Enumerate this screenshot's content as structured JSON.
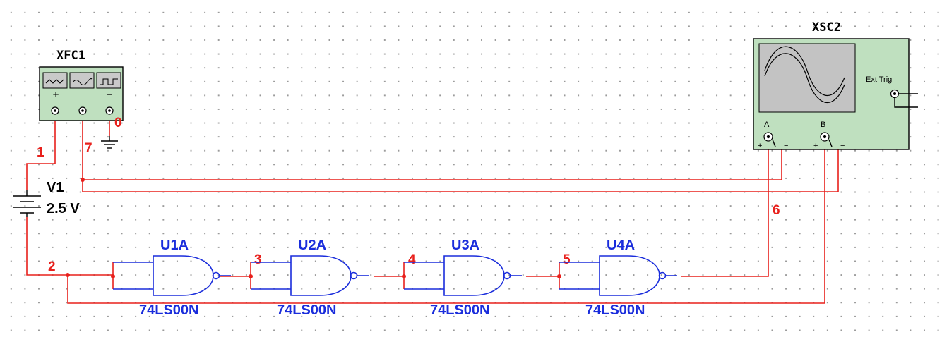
{
  "function_generator": {
    "ref": "XFC1",
    "colors": {
      "body": "#bfe0bf",
      "border": "#000000"
    }
  },
  "oscilloscope": {
    "ref": "XSC2",
    "ext_trig_label": "Ext Trig",
    "channel_a_label": "A",
    "channel_b_label": "B",
    "colors": {
      "body": "#bfe0bf",
      "screen": "#c3c3c3"
    }
  },
  "battery": {
    "ref": "V1",
    "value": "2.5 V"
  },
  "gates": [
    {
      "ref": "U1A",
      "part": "74LS00N"
    },
    {
      "ref": "U2A",
      "part": "74LS00N"
    },
    {
      "ref": "U3A",
      "part": "74LS00N"
    },
    {
      "ref": "U4A",
      "part": "74LS00N"
    }
  ],
  "nets": [
    "0",
    "1",
    "2",
    "3",
    "4",
    "5",
    "6",
    "7"
  ],
  "colors": {
    "wire": "#e8201c",
    "gate": "#1a2ddc",
    "grid_dot": "#9a9a9a"
  }
}
